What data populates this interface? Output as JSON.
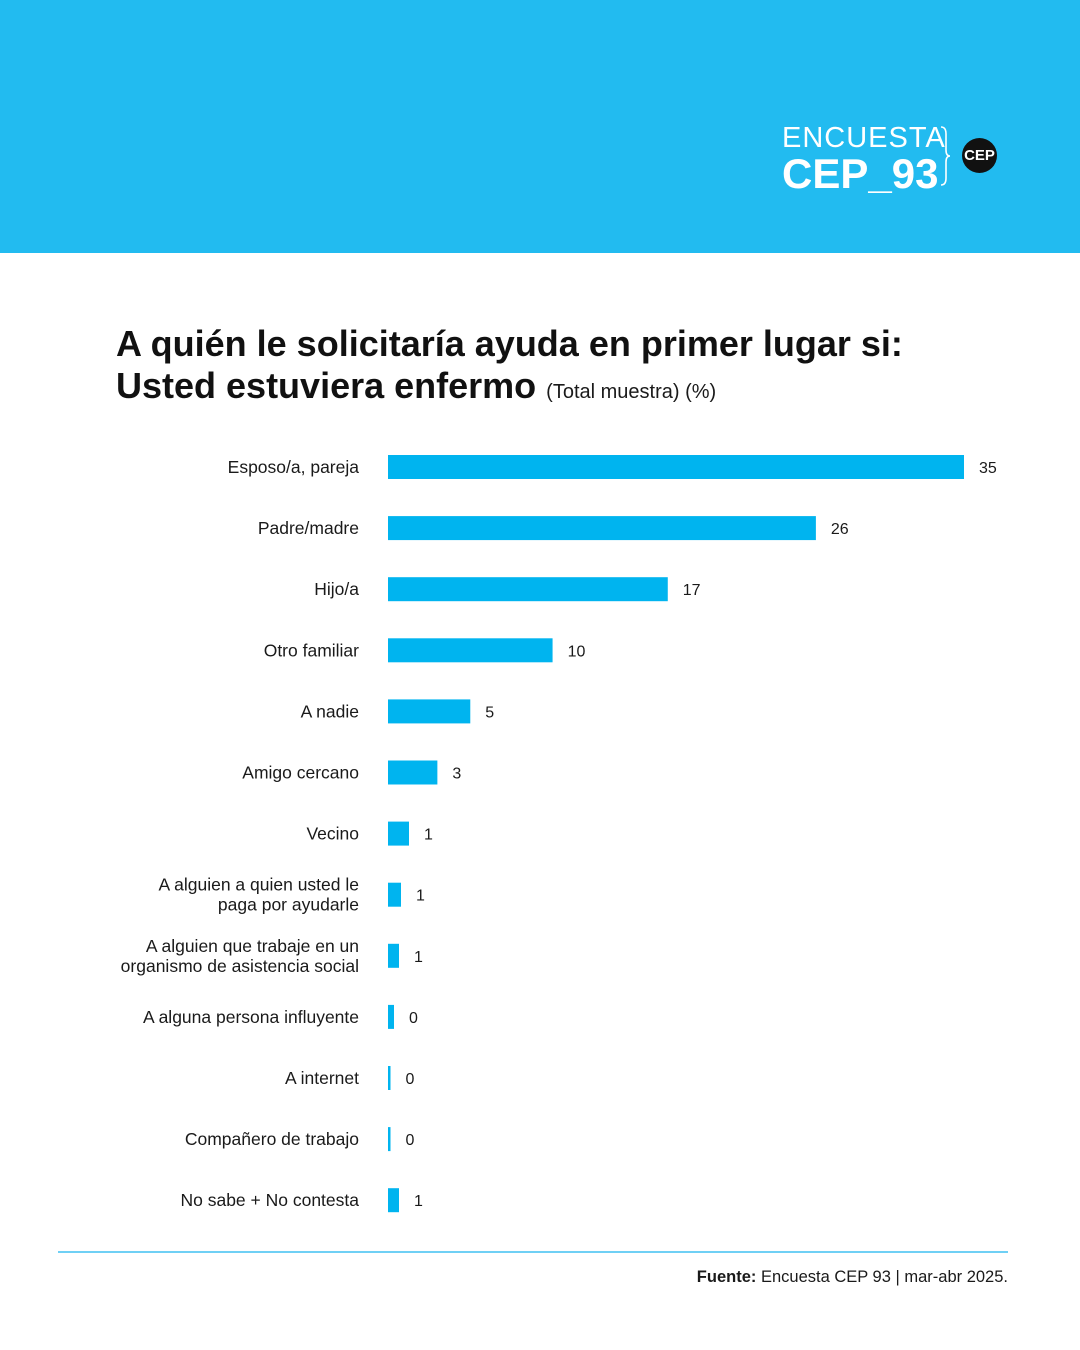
{
  "colors": {
    "header_bg": "#22bbf0",
    "bar": "#00b4ef",
    "divider": "#6fd0f5"
  },
  "logo": {
    "line1": "ENCUESTA",
    "line2": "CEP_93",
    "badge": "CEP"
  },
  "title": {
    "line1": "A quién le solicitaría ayuda en primer lugar si:",
    "line2": "Usted estuviera enfermo",
    "subtitle": "(Total muestra) (%)"
  },
  "chart_data": {
    "type": "bar",
    "orientation": "horizontal",
    "categories": [
      [
        "Esposo/a, pareja"
      ],
      [
        "Padre/madre"
      ],
      [
        "Hijo/a"
      ],
      [
        "Otro familiar"
      ],
      [
        "A nadie"
      ],
      [
        "Amigo cercano"
      ],
      [
        "Vecino"
      ],
      [
        "A alguien a quien usted le",
        "paga por ayudarle"
      ],
      [
        "A alguien que trabaje en un",
        "organismo de asistencia social"
      ],
      [
        "A alguna persona influyente"
      ],
      [
        "A internet"
      ],
      [
        "Compañero de trabajo"
      ],
      [
        "No sabe + No contesta"
      ]
    ],
    "values": [
      35,
      26,
      17,
      10,
      5,
      3,
      1,
      1,
      1,
      0,
      0,
      0,
      1
    ],
    "value_labels": [
      "35",
      "26",
      "17",
      "10",
      "5",
      "3",
      "1",
      "1",
      "1",
      "0",
      "0",
      "0",
      "1"
    ],
    "xlim": [
      0,
      35
    ],
    "grid": false,
    "legend": "none"
  },
  "footer": {
    "source_label": "Fuente:",
    "source_text": " Encuesta CEP 93 | mar-abr 2025."
  }
}
